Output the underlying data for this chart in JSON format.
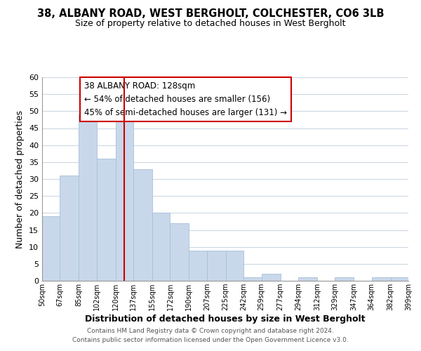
{
  "title": "38, ALBANY ROAD, WEST BERGHOLT, COLCHESTER, CO6 3LB",
  "subtitle": "Size of property relative to detached houses in West Bergholt",
  "xlabel": "Distribution of detached houses by size in West Bergholt",
  "ylabel": "Number of detached properties",
  "bar_edges": [
    50,
    67,
    85,
    102,
    120,
    137,
    155,
    172,
    190,
    207,
    225,
    242,
    259,
    277,
    294,
    312,
    329,
    347,
    364,
    382,
    399
  ],
  "bar_heights": [
    19,
    31,
    49,
    36,
    51,
    33,
    20,
    17,
    9,
    9,
    9,
    1,
    2,
    0,
    1,
    0,
    1,
    0,
    1,
    1
  ],
  "bar_color": "#c8d8ea",
  "bar_edge_color": "#a8c0d8",
  "vline_x": 128,
  "vline_color": "#cc0000",
  "ylim": [
    0,
    60
  ],
  "annotation_title": "38 ALBANY ROAD: 128sqm",
  "annotation_line1": "← 54% of detached houses are smaller (156)",
  "annotation_line2": "45% of semi-detached houses are larger (131) →",
  "footer1": "Contains HM Land Registry data © Crown copyright and database right 2024.",
  "footer2": "Contains public sector information licensed under the Open Government Licence v3.0.",
  "tick_labels": [
    "50sqm",
    "67sqm",
    "85sqm",
    "102sqm",
    "120sqm",
    "137sqm",
    "155sqm",
    "172sqm",
    "190sqm",
    "207sqm",
    "225sqm",
    "242sqm",
    "259sqm",
    "277sqm",
    "294sqm",
    "312sqm",
    "329sqm",
    "347sqm",
    "364sqm",
    "382sqm",
    "399sqm"
  ],
  "background_color": "#ffffff",
  "grid_color": "#ccd8e4"
}
